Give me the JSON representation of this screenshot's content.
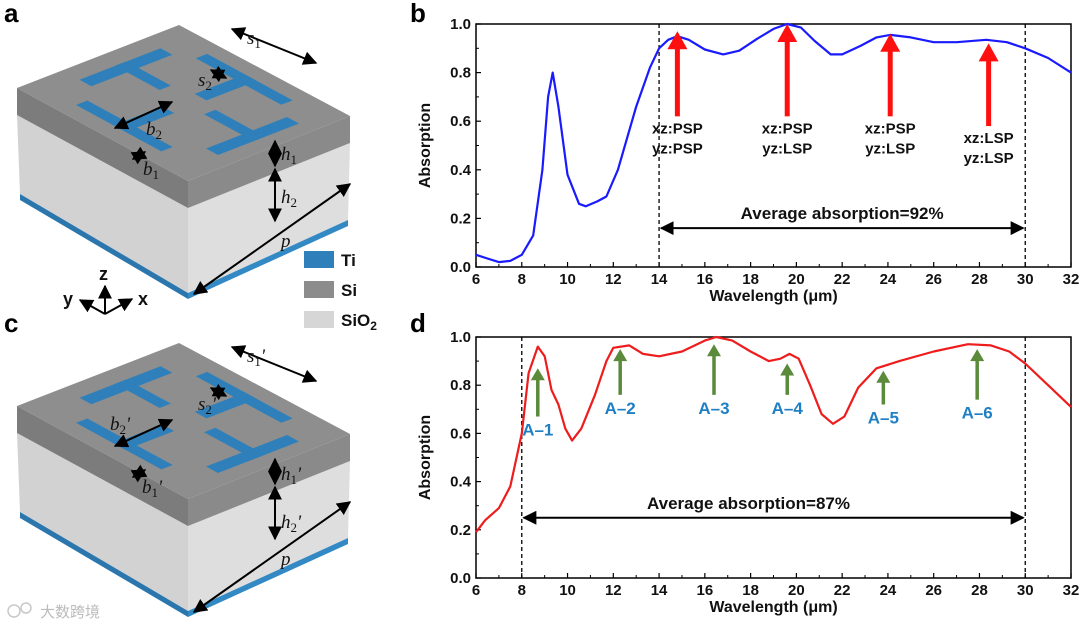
{
  "panels": {
    "a": "a",
    "b": "b",
    "c": "c",
    "d": "d"
  },
  "colors": {
    "ti": "#2f80ba",
    "si": "#8c8c8c",
    "sio2": "#d6d6d6",
    "curve_b": "#1a1aff",
    "curve_d": "#ee1c1c",
    "arrow_b": "#ff1010",
    "arrow_d": "#5a8a3a",
    "label_d": "#1f7fc4"
  },
  "legend": [
    {
      "label": "Ti",
      "sub": "",
      "color": "#2f80ba"
    },
    {
      "label": "Si",
      "sub": "",
      "color": "#8c8c8c"
    },
    {
      "label": "SiO",
      "sub": "2",
      "color": "#d6d6d6"
    }
  ],
  "axes3d": {
    "z": "z",
    "y": "y",
    "x": "x"
  },
  "dims_a": {
    "s1": {
      "main": "s",
      "sub": "1",
      "suffix": ""
    },
    "s2": {
      "main": "s",
      "sub": "2",
      "suffix": ""
    },
    "b2": {
      "main": "b",
      "sub": "2",
      "suffix": ""
    },
    "b1": {
      "main": "b",
      "sub": "1",
      "suffix": ""
    },
    "h1": {
      "main": "h",
      "sub": "1",
      "suffix": ""
    },
    "h2": {
      "main": "h",
      "sub": "2",
      "suffix": ""
    },
    "p": {
      "main": "p",
      "sub": "",
      "suffix": ""
    }
  },
  "dims_c": {
    "s1": {
      "main": "s",
      "sub": "1",
      "suffix": "'"
    },
    "s2": {
      "main": "s",
      "sub": "2",
      "suffix": "'"
    },
    "b2": {
      "main": "b",
      "sub": "2",
      "suffix": "'"
    },
    "b1": {
      "main": "b",
      "sub": "1",
      "suffix": "'"
    },
    "h1": {
      "main": "h",
      "sub": "1",
      "suffix": "'"
    },
    "h2": {
      "main": "h",
      "sub": "2",
      "suffix": "'"
    },
    "p": {
      "main": "p",
      "sub": "",
      "suffix": ""
    }
  },
  "watermark": "大数跨境",
  "chart_data": [
    {
      "type": "line",
      "panel": "b",
      "xlabel": "Wavelength (μm)",
      "ylabel": "Absorption",
      "xlim": [
        6,
        32
      ],
      "ylim": [
        0,
        1.0
      ],
      "xticks": [
        6,
        8,
        10,
        12,
        14,
        16,
        18,
        20,
        22,
        24,
        26,
        28,
        30,
        32
      ],
      "yticks": [
        "0.0",
        "0.2",
        "0.4",
        "0.6",
        "0.8",
        "1.0"
      ],
      "series": [
        {
          "name": "absorption",
          "color": "#1a1aff",
          "x": [
            6,
            6.5,
            7,
            7.5,
            8,
            8.5,
            8.9,
            9.15,
            9.35,
            9.6,
            10,
            10.5,
            10.8,
            11.3,
            11.7,
            12.2,
            13,
            13.6,
            14,
            14.4,
            14.8,
            15.3,
            16,
            16.8,
            17.5,
            18.3,
            19,
            19.6,
            20.2,
            20.8,
            21.5,
            22,
            22.8,
            23.5,
            24.1,
            25,
            26,
            27,
            28.3,
            29.2,
            30,
            31,
            32
          ],
          "y": [
            0.05,
            0.035,
            0.02,
            0.025,
            0.05,
            0.13,
            0.4,
            0.7,
            0.8,
            0.66,
            0.38,
            0.26,
            0.25,
            0.27,
            0.29,
            0.4,
            0.66,
            0.82,
            0.9,
            0.935,
            0.95,
            0.935,
            0.895,
            0.875,
            0.89,
            0.94,
            0.98,
            1.0,
            0.985,
            0.93,
            0.875,
            0.875,
            0.91,
            0.945,
            0.955,
            0.945,
            0.925,
            0.925,
            0.935,
            0.925,
            0.9,
            0.86,
            0.8
          ]
        }
      ],
      "vlines": [
        14,
        30
      ],
      "arrows": [
        {
          "x": 14.8,
          "y_from": 0.62,
          "y_to": 0.97,
          "label1": "xz:PSP",
          "label2": "yz:PSP"
        },
        {
          "x": 19.6,
          "y_from": 0.62,
          "y_to": 1.0,
          "label1": "xz:PSP",
          "label2": "yz:LSP"
        },
        {
          "x": 24.1,
          "y_from": 0.62,
          "y_to": 0.96,
          "label1": "xz:PSP",
          "label2": "yz:LSP"
        },
        {
          "x": 28.4,
          "y_from": 0.58,
          "y_to": 0.92,
          "label1": "xz:LSP",
          "label2": "yz:LSP"
        }
      ],
      "average": {
        "text": "Average absorption=92%",
        "from": 14,
        "to": 30,
        "y": 0.16
      }
    },
    {
      "type": "line",
      "panel": "d",
      "xlabel": "Wavelength (μm)",
      "ylabel": "Absorption",
      "xlim": [
        6,
        32
      ],
      "ylim": [
        0,
        1.0
      ],
      "xticks": [
        6,
        8,
        10,
        12,
        14,
        16,
        18,
        20,
        22,
        24,
        26,
        28,
        30,
        32
      ],
      "yticks": [
        "0.0",
        "0.2",
        "0.4",
        "0.6",
        "0.8",
        "1.0"
      ],
      "series": [
        {
          "name": "absorption",
          "color": "#ee1c1c",
          "x": [
            6,
            6.4,
            7,
            7.5,
            8,
            8.3,
            8.7,
            9.0,
            9.3,
            9.6,
            9.9,
            10.2,
            10.6,
            11.2,
            11.7,
            12.0,
            12.7,
            13.3,
            14,
            15,
            16,
            16.5,
            17.2,
            18,
            18.8,
            19.3,
            19.7,
            20.1,
            20.6,
            21.1,
            21.6,
            22.1,
            22.7,
            23.5,
            24.5,
            26,
            27.5,
            28.5,
            29.3,
            30,
            31,
            32
          ],
          "y": [
            0.19,
            0.24,
            0.29,
            0.38,
            0.6,
            0.85,
            0.96,
            0.92,
            0.78,
            0.72,
            0.62,
            0.57,
            0.62,
            0.76,
            0.9,
            0.955,
            0.965,
            0.93,
            0.92,
            0.94,
            0.985,
            1.0,
            0.985,
            0.94,
            0.9,
            0.91,
            0.93,
            0.91,
            0.8,
            0.68,
            0.64,
            0.67,
            0.79,
            0.87,
            0.9,
            0.94,
            0.97,
            0.965,
            0.94,
            0.89,
            0.8,
            0.71
          ]
        }
      ],
      "vlines": [
        8,
        30
      ],
      "arrows": [
        {
          "x": 8.7,
          "y_from": 0.67,
          "y_to": 0.87,
          "label1": "A–1"
        },
        {
          "x": 12.3,
          "y_from": 0.76,
          "y_to": 0.95,
          "label1": "A–2"
        },
        {
          "x": 16.4,
          "y_from": 0.76,
          "y_to": 0.97,
          "label1": "A–3"
        },
        {
          "x": 19.6,
          "y_from": 0.76,
          "y_to": 0.89,
          "label1": "A–4"
        },
        {
          "x": 23.8,
          "y_from": 0.72,
          "y_to": 0.86,
          "label1": "A–5"
        },
        {
          "x": 27.9,
          "y_from": 0.74,
          "y_to": 0.95,
          "label1": "A–6"
        }
      ],
      "average": {
        "text": "Average absorption=87%",
        "from": 8,
        "to": 30,
        "y": 0.25
      }
    }
  ]
}
